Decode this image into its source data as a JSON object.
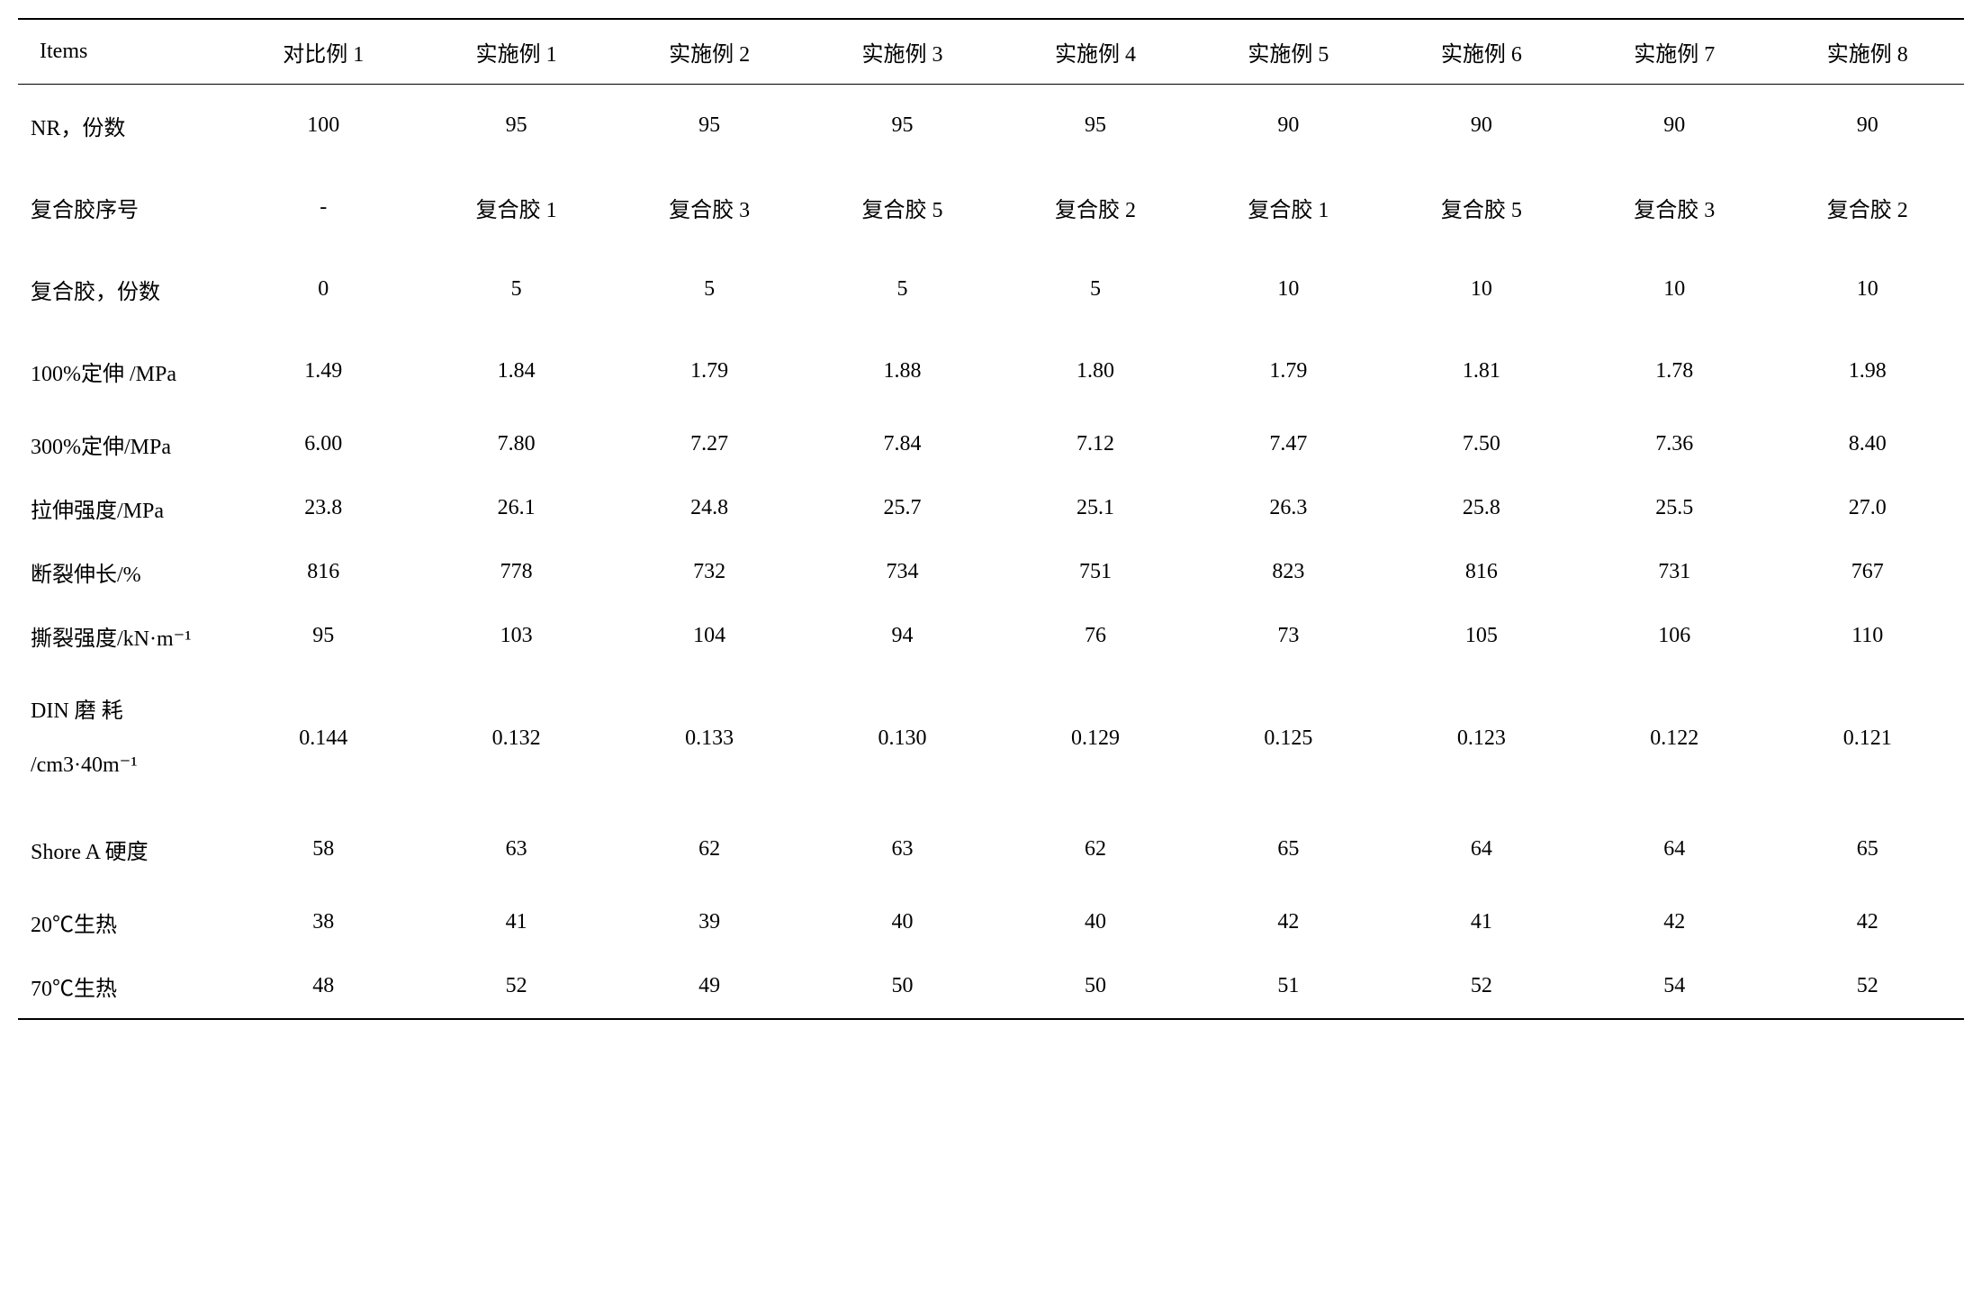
{
  "table": {
    "columns": [
      "Items",
      "对比例 1",
      "实施例 1",
      "实施例 2",
      "实施例 3",
      "实施例 4",
      "实施例 5",
      "实施例 6",
      "实施例 7",
      "实施例 8"
    ],
    "column_widths": [
      "200px",
      "auto",
      "auto",
      "auto",
      "auto",
      "auto",
      "auto",
      "auto",
      "auto",
      "auto"
    ],
    "rows": [
      {
        "label": "NR，份数",
        "values": [
          "100",
          "95",
          "95",
          "95",
          "95",
          "90",
          "90",
          "90",
          "90"
        ]
      },
      {
        "label": "复合胶序号",
        "values": [
          "-",
          "复合胶 1",
          "复合胶 3",
          "复合胶 5",
          "复合胶 2",
          "复合胶 1",
          "复合胶 5",
          "复合胶 3",
          "复合胶 2"
        ]
      },
      {
        "label": "复合胶，份数",
        "values": [
          "0",
          "5",
          "5",
          "5",
          "5",
          "10",
          "10",
          "10",
          "10"
        ]
      },
      {
        "label": "100%定伸 /MPa",
        "values": [
          "1.49",
          "1.84",
          "1.79",
          "1.88",
          "1.80",
          "1.79",
          "1.81",
          "1.78",
          "1.98"
        ]
      },
      {
        "label": "300%定伸/MPa",
        "values": [
          "6.00",
          "7.80",
          "7.27",
          "7.84",
          "7.12",
          "7.47",
          "7.50",
          "7.36",
          "8.40"
        ]
      },
      {
        "label": "拉伸强度/MPa",
        "values": [
          "23.8",
          "26.1",
          "24.8",
          "25.7",
          "25.1",
          "26.3",
          "25.8",
          "25.5",
          "27.0"
        ]
      },
      {
        "label": "断裂伸长/%",
        "values": [
          "816",
          "778",
          "732",
          "734",
          "751",
          "823",
          "816",
          "731",
          "767"
        ]
      },
      {
        "label": "撕裂强度/kN·m⁻¹",
        "values": [
          "95",
          "103",
          "104",
          "94",
          "76",
          "73",
          "105",
          "106",
          "110"
        ]
      },
      {
        "label": "DIN 磨 耗 /cm3·40m⁻¹",
        "values": [
          "0.144",
          "0.132",
          "0.133",
          "0.130",
          "0.129",
          "0.125",
          "0.123",
          "0.122",
          "0.121"
        ]
      },
      {
        "label": "Shore A 硬度",
        "values": [
          "58",
          "63",
          "62",
          "63",
          "62",
          "65",
          "64",
          "64",
          "65"
        ]
      },
      {
        "label": "20℃生热",
        "values": [
          "38",
          "41",
          "39",
          "40",
          "40",
          "42",
          "41",
          "42",
          "42"
        ]
      },
      {
        "label": "70℃生热",
        "values": [
          "48",
          "52",
          "49",
          "50",
          "50",
          "51",
          "52",
          "54",
          "52"
        ]
      }
    ],
    "border_color": "#000000",
    "background_color": "#ffffff",
    "text_color": "#000000",
    "font_size": 24,
    "header_font_size": 24
  }
}
